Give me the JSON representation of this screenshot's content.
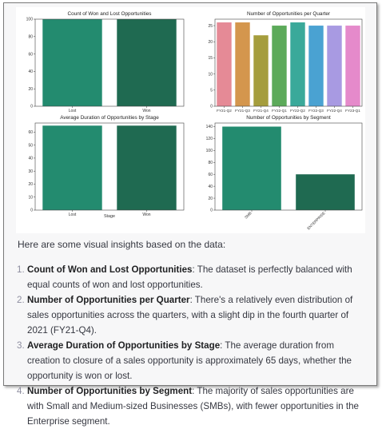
{
  "intro": "Here are some visual insights based on the data:",
  "insights": [
    {
      "num": "1.",
      "title": "Count of Won and Lost Opportunities",
      "text": ": The dataset is perfectly balanced with equal counts of won and lost opportunities."
    },
    {
      "num": "2.",
      "title": "Number of Opportunities per Quarter",
      "text": ": There's a relatively even distribution of sales opportunities across the quarters, with a slight dip in the fourth quarter of 2021 (FY21-Q4)."
    },
    {
      "num": "3.",
      "title": "Average Duration of Opportunities by Stage",
      "text": ": The average duration from creation to closure of a sales opportunity is approximately 65 days, whether the opportunity is won or lost."
    },
    {
      "num": "4.",
      "title": "Number of Opportunities by Segment",
      "text": ": The majority of sales opportunities are with Small and Medium-sized Businesses (SMBs), with fewer opportunities in the Enterprise segment."
    }
  ],
  "chart_data": [
    {
      "type": "bar",
      "title": "Count of Won and Lost Opportunities",
      "categories": [
        "Lost",
        "Won"
      ],
      "values": [
        100,
        100
      ],
      "ylim": [
        0,
        100
      ],
      "yticks": [
        0,
        20,
        40,
        60,
        80,
        100
      ],
      "xlabel": "",
      "ylabel": "",
      "colors": [
        "#238b6f",
        "#1f6a51"
      ]
    },
    {
      "type": "bar",
      "title": "Number of Opportunities per Quarter",
      "categories": [
        "FY21-Q2",
        "FY21-Q3",
        "FY21-Q4",
        "FY22-Q1",
        "FY22-Q2",
        "FY22-Q3",
        "FY22-Q4",
        "FY23-Q1"
      ],
      "values": [
        26,
        26,
        22,
        25,
        26,
        25,
        25,
        25
      ],
      "ylim": [
        0,
        27
      ],
      "yticks": [
        0,
        5,
        10,
        15,
        20,
        25
      ],
      "xlabel": "",
      "ylabel": "",
      "colors": [
        "#e58a96",
        "#d4964d",
        "#a59d3d",
        "#5caa5a",
        "#3aa99a",
        "#4aa2d2",
        "#a89ae2",
        "#e58acb"
      ]
    },
    {
      "type": "bar",
      "title": "Average Duration of Opportunities by Stage",
      "categories": [
        "Lost",
        "Won"
      ],
      "values": [
        65,
        65
      ],
      "ylim": [
        0,
        67
      ],
      "yticks": [
        0,
        10,
        20,
        30,
        40,
        50,
        60
      ],
      "xlabel": "Stage",
      "ylabel": "",
      "colors": [
        "#238b6f",
        "#1f6a51"
      ]
    },
    {
      "type": "bar",
      "title": "Number of Opportunities by Segment",
      "categories": [
        "SMB",
        "ENTERPRISE"
      ],
      "values": [
        140,
        60
      ],
      "ylim": [
        0,
        146
      ],
      "yticks": [
        0,
        20,
        40,
        60,
        80,
        100,
        120,
        140
      ],
      "xlabel": "",
      "ylabel": "",
      "colors": [
        "#238b6f",
        "#1f6a51"
      ]
    }
  ]
}
